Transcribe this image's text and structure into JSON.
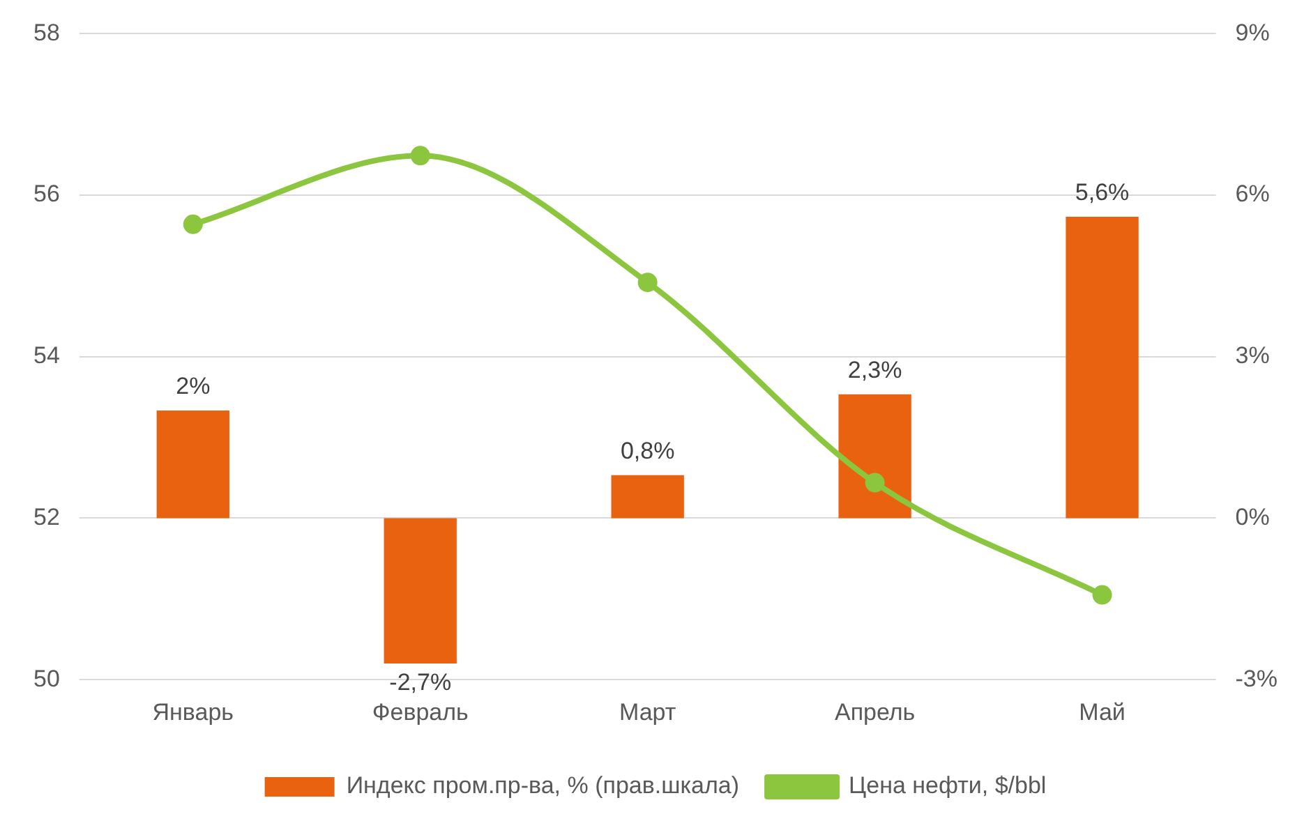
{
  "chart_data": {
    "type": "bar",
    "categories": [
      "Январь",
      "Февраль",
      "Март",
      "Апрель",
      "Май"
    ],
    "series": [
      {
        "name": "Индекс пром.пр-ва, % (прав.шкала)",
        "axis": "y2",
        "color": "#e8620f",
        "values": [
          2,
          -2.7,
          0.8,
          2.3,
          5.6
        ],
        "value_labels": [
          "2%",
          "-2,7%",
          "0,8%",
          "2,3%",
          "5,6%"
        ]
      },
      {
        "name": "Цена нефти, $/bbl",
        "type": "line",
        "color": "#8cc63f",
        "values": [
          55.64,
          56.49,
          54.92,
          52.44,
          51.05
        ],
        "marker": "circle"
      }
    ],
    "ylim": [
      50,
      58
    ],
    "yticks": [
      50,
      52,
      54,
      56,
      58
    ],
    "y2lim": [
      -3,
      9
    ],
    "y2ticks": [
      {
        "value": -3,
        "label": "-3%"
      },
      {
        "value": 0,
        "label": "0%"
      },
      {
        "value": 3,
        "label": "3%"
      },
      {
        "value": 6,
        "label": "6%"
      },
      {
        "value": 9,
        "label": "9%"
      }
    ],
    "grid": "y",
    "legend": "bottom"
  }
}
